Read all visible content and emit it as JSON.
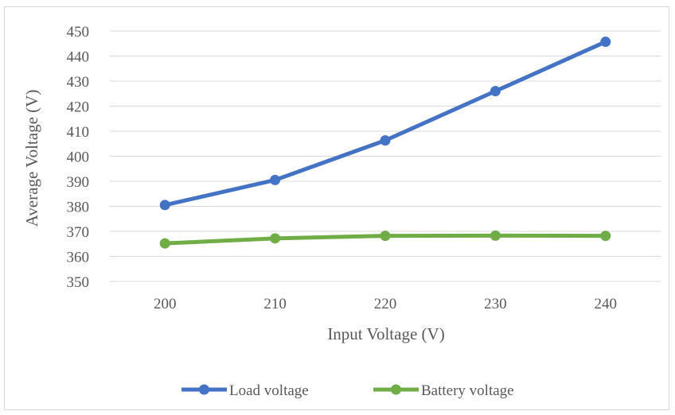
{
  "chart_data": {
    "type": "line",
    "title": "",
    "xlabel": "Input Voltage (V)",
    "ylabel": "Average Voltage (V)",
    "categories": [
      "200",
      "210",
      "220",
      "230",
      "240"
    ],
    "ylim": [
      350,
      450
    ],
    "yticks": [
      "350",
      "360",
      "370",
      "380",
      "390",
      "400",
      "410",
      "420",
      "430",
      "440",
      "450"
    ],
    "grid": true,
    "legend_position": "bottom",
    "series": [
      {
        "name": "Load voltage",
        "color": "#4472c4",
        "values": [
          380.5,
          390.5,
          406.3,
          426.0,
          445.7
        ]
      },
      {
        "name": "Battery voltage",
        "color": "#70ad47",
        "values": [
          365.2,
          367.2,
          368.2,
          368.3,
          368.2
        ]
      }
    ]
  }
}
